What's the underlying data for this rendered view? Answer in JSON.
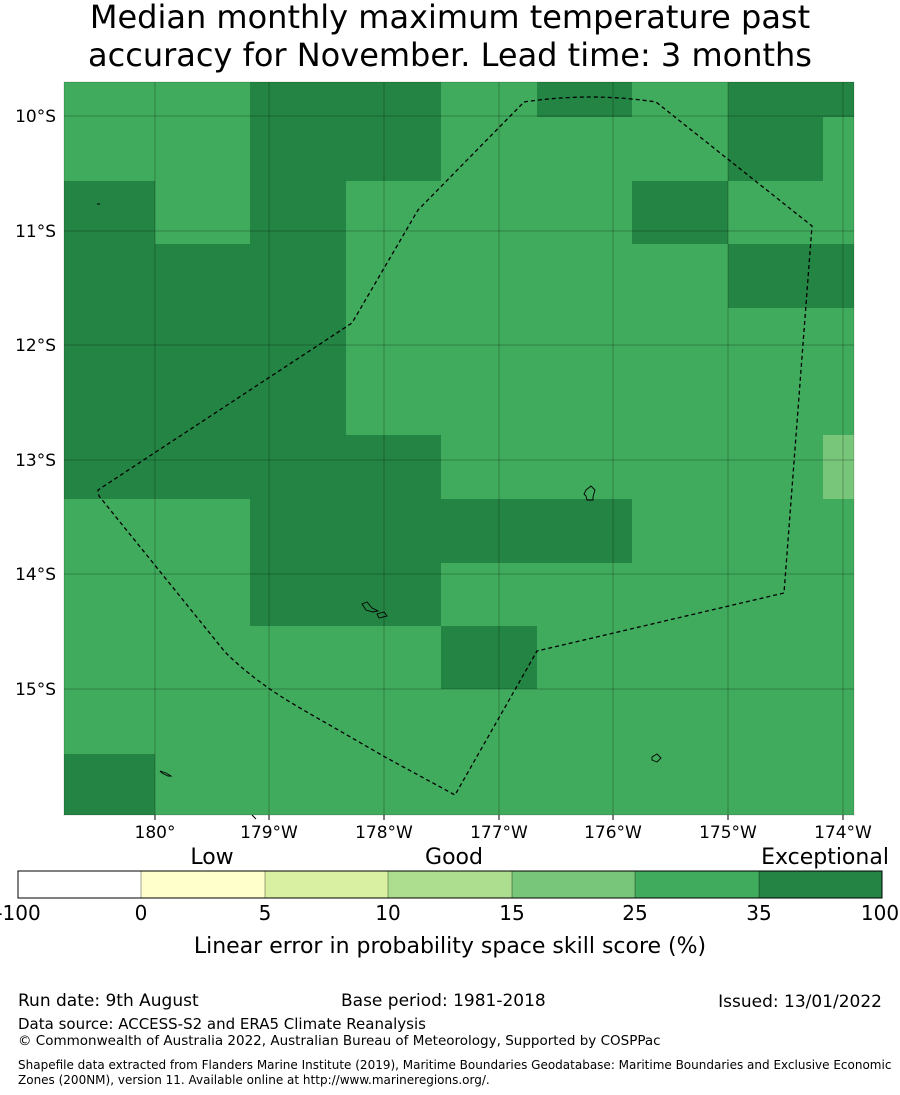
{
  "title": {
    "line1": "Median monthly maximum temperature past",
    "line2": "accuracy for November. Lead time: 3 months"
  },
  "map": {
    "lon_labels": [
      "180°",
      "179°W",
      "178°W",
      "177°W",
      "176°W",
      "175°W",
      "174°W"
    ],
    "lat_labels": [
      "10°S",
      "11°S",
      "12°S",
      "13°S",
      "14°S",
      "15°S"
    ],
    "colors": {
      "exceptional_dark": "#228844",
      "good_high": "#41ab5d",
      "good_mid": "#78c679",
      "boundary": "#000000"
    }
  },
  "legend": {
    "category_labels": {
      "low": "Low",
      "good": "Good",
      "exceptional": "Exceptional"
    },
    "tick_labels": [
      "-100",
      "0",
      "5",
      "10",
      "15",
      "25",
      "35",
      "100"
    ],
    "colors": [
      "#ffffff",
      "#ffffcc",
      "#d9f0a3",
      "#addd8e",
      "#78c679",
      "#41ab5d",
      "#238443"
    ],
    "xlabel": "Linear error in probability space skill score (%)"
  },
  "footer": {
    "run_date": "Run date: 9th August",
    "base_period": "Base period: 1981-2018",
    "issued": "Issued: 13/01/2022",
    "data_source": "Data source: ACCESS-S2 and ERA5 Climate Reanalysis",
    "copyright": "© Commonwealth of Australia 2022, Australian Bureau of Meteorology, Supported by COSPPac",
    "shapefile_note": "Shapefile data extracted from Flanders Marine Institute (2019), Maritime Boundaries Geodatabase: Maritime Boundaries and Exclusive Economic Zones (200NM), version 11. Available online at http://www.marineregions.org/."
  }
}
